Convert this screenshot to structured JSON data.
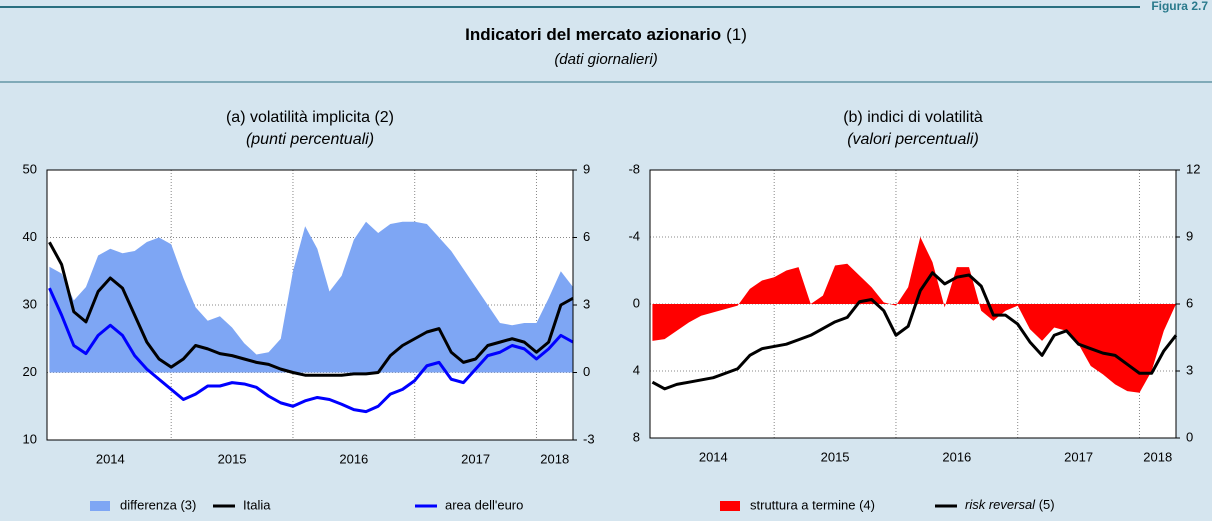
{
  "header": {
    "figure": "Figura 2.7",
    "title": "Indicatori del mercato azionario",
    "title_note": "(1)",
    "subtitle": "(dati giornalieri)"
  },
  "chart_data": [
    {
      "type": "line",
      "title": "(a) volatilità implicita (2)",
      "subtitle": "(punti percentuali)",
      "x": [
        2014.0,
        2014.1,
        2014.2,
        2014.3,
        2014.4,
        2014.5,
        2014.6,
        2014.7,
        2014.8,
        2014.9,
        2015.0,
        2015.1,
        2015.2,
        2015.3,
        2015.4,
        2015.5,
        2015.6,
        2015.7,
        2015.8,
        2015.9,
        2016.0,
        2016.1,
        2016.2,
        2016.3,
        2016.4,
        2016.5,
        2016.6,
        2016.7,
        2016.8,
        2016.9,
        2017.0,
        2017.1,
        2017.2,
        2017.3,
        2017.4,
        2017.5,
        2017.6,
        2017.7,
        2017.8,
        2017.9,
        2018.0,
        2018.1,
        2018.2,
        2018.3
      ],
      "xlim": [
        2013.98,
        2018.3
      ],
      "xticks": [
        {
          "value": 2014.5,
          "label": "2014"
        },
        {
          "value": 2015.5,
          "label": "2015"
        },
        {
          "value": 2016.5,
          "label": "2016"
        },
        {
          "value": 2017.5,
          "label": "2017"
        },
        {
          "value": 2018.15,
          "label": "2018"
        }
      ],
      "xgrid": [
        2015,
        2016,
        2017,
        2018
      ],
      "ylim": [
        10,
        50
      ],
      "yticks": [
        10,
        20,
        30,
        40,
        50
      ],
      "y2lim": [
        -3,
        9
      ],
      "y2ticks": [
        -3,
        0,
        3,
        6,
        9
      ],
      "grid": true,
      "series": [
        {
          "name": "differenza (3)",
          "kind": "area",
          "axis": "y2",
          "color": "#7ea6f4",
          "values": [
            4.7,
            4.4,
            3.2,
            3.8,
            5.2,
            5.5,
            5.3,
            5.4,
            5.8,
            6.0,
            5.7,
            4.2,
            2.9,
            2.3,
            2.5,
            2.0,
            1.3,
            0.8,
            0.9,
            1.5,
            4.5,
            6.5,
            5.5,
            3.6,
            4.3,
            5.9,
            6.7,
            6.2,
            6.6,
            6.7,
            6.7,
            6.6,
            6.0,
            5.4,
            4.6,
            3.8,
            3.0,
            2.2,
            2.1,
            2.2,
            2.2,
            3.3,
            4.5,
            3.8
          ]
        },
        {
          "name": "Italia",
          "kind": "line",
          "color": "#000000",
          "values": [
            39.3,
            36.0,
            29.0,
            27.5,
            32.0,
            34.0,
            32.5,
            28.5,
            24.5,
            22.0,
            20.8,
            22.0,
            24.0,
            23.5,
            22.8,
            22.5,
            22.0,
            21.5,
            21.2,
            20.5,
            20.0,
            19.6,
            19.6,
            19.6,
            19.6,
            19.8,
            19.8,
            20.0,
            22.5,
            24.0,
            25.0,
            26.0,
            26.5,
            23.0,
            21.5,
            22.0,
            24.0,
            24.5,
            25.0,
            24.5,
            23.0,
            24.5,
            30.0,
            31.0
          ]
        },
        {
          "name": "area dell'euro",
          "kind": "line",
          "color": "#0000ff",
          "values": [
            32.5,
            28.5,
            24.0,
            22.8,
            25.5,
            27.0,
            25.5,
            22.5,
            20.5,
            19.0,
            17.5,
            16.0,
            16.8,
            18.0,
            18.0,
            18.5,
            18.3,
            17.8,
            16.5,
            15.5,
            15.0,
            15.8,
            16.3,
            16.0,
            15.3,
            14.5,
            14.2,
            15.0,
            16.8,
            17.5,
            18.8,
            21.0,
            21.5,
            19.0,
            18.5,
            20.5,
            22.5,
            23.0,
            24.0,
            23.5,
            22.0,
            23.5,
            25.5,
            24.5
          ]
        }
      ]
    },
    {
      "type": "line",
      "title": "(b) indici di volatilità",
      "subtitle": "(valori percentuali)",
      "x": [
        2014.0,
        2014.1,
        2014.2,
        2014.3,
        2014.4,
        2014.5,
        2014.6,
        2014.7,
        2014.8,
        2014.9,
        2015.0,
        2015.1,
        2015.2,
        2015.3,
        2015.4,
        2015.5,
        2015.6,
        2015.7,
        2015.8,
        2015.9,
        2016.0,
        2016.1,
        2016.2,
        2016.3,
        2016.4,
        2016.5,
        2016.6,
        2016.7,
        2016.8,
        2016.9,
        2017.0,
        2017.1,
        2017.2,
        2017.3,
        2017.4,
        2017.5,
        2017.6,
        2017.7,
        2017.8,
        2017.9,
        2018.0,
        2018.1,
        2018.2,
        2018.3
      ],
      "xlim": [
        2013.98,
        2018.3
      ],
      "xticks": [
        {
          "value": 2014.5,
          "label": "2014"
        },
        {
          "value": 2015.5,
          "label": "2015"
        },
        {
          "value": 2016.5,
          "label": "2016"
        },
        {
          "value": 2017.5,
          "label": "2017"
        },
        {
          "value": 2018.15,
          "label": "2018"
        }
      ],
      "xgrid": [
        2015,
        2016,
        2017,
        2018
      ],
      "ylim": [
        8,
        -8
      ],
      "yticks": [
        8,
        4,
        0,
        -4,
        -8
      ],
      "y2lim": [
        0,
        12
      ],
      "y2ticks": [
        0,
        3,
        6,
        9,
        12
      ],
      "grid": true,
      "series": [
        {
          "name": "struttura a termine (4)",
          "kind": "area",
          "color": "#ff0000",
          "values": [
            2.2,
            2.1,
            1.6,
            1.1,
            0.7,
            0.5,
            0.3,
            0.1,
            -0.9,
            -1.4,
            -1.6,
            -2.0,
            -2.2,
            0.0,
            -0.5,
            -2.3,
            -2.4,
            -1.7,
            -1.0,
            -0.1,
            0.1,
            -1.0,
            -4.0,
            -2.5,
            0.2,
            -2.2,
            -2.2,
            0.4,
            1.0,
            0.4,
            0.1,
            1.5,
            2.2,
            1.4,
            1.6,
            2.4,
            3.7,
            4.2,
            4.8,
            5.2,
            5.3,
            4.0,
            1.6,
            0.0
          ]
        },
        {
          "name": "risk reversal (5)",
          "kind": "line",
          "axis": "y2",
          "color": "#000000",
          "italic_name": true,
          "values": [
            2.5,
            2.2,
            2.4,
            2.5,
            2.6,
            2.7,
            2.9,
            3.1,
            3.7,
            4.0,
            4.1,
            4.2,
            4.4,
            4.6,
            4.9,
            5.2,
            5.4,
            6.1,
            6.2,
            5.7,
            4.6,
            5.0,
            6.6,
            7.4,
            6.9,
            7.2,
            7.3,
            6.8,
            5.5,
            5.5,
            5.1,
            4.3,
            3.7,
            4.6,
            4.8,
            4.2,
            4.0,
            3.8,
            3.7,
            3.3,
            2.9,
            2.9,
            3.9,
            4.6
          ]
        }
      ]
    }
  ]
}
